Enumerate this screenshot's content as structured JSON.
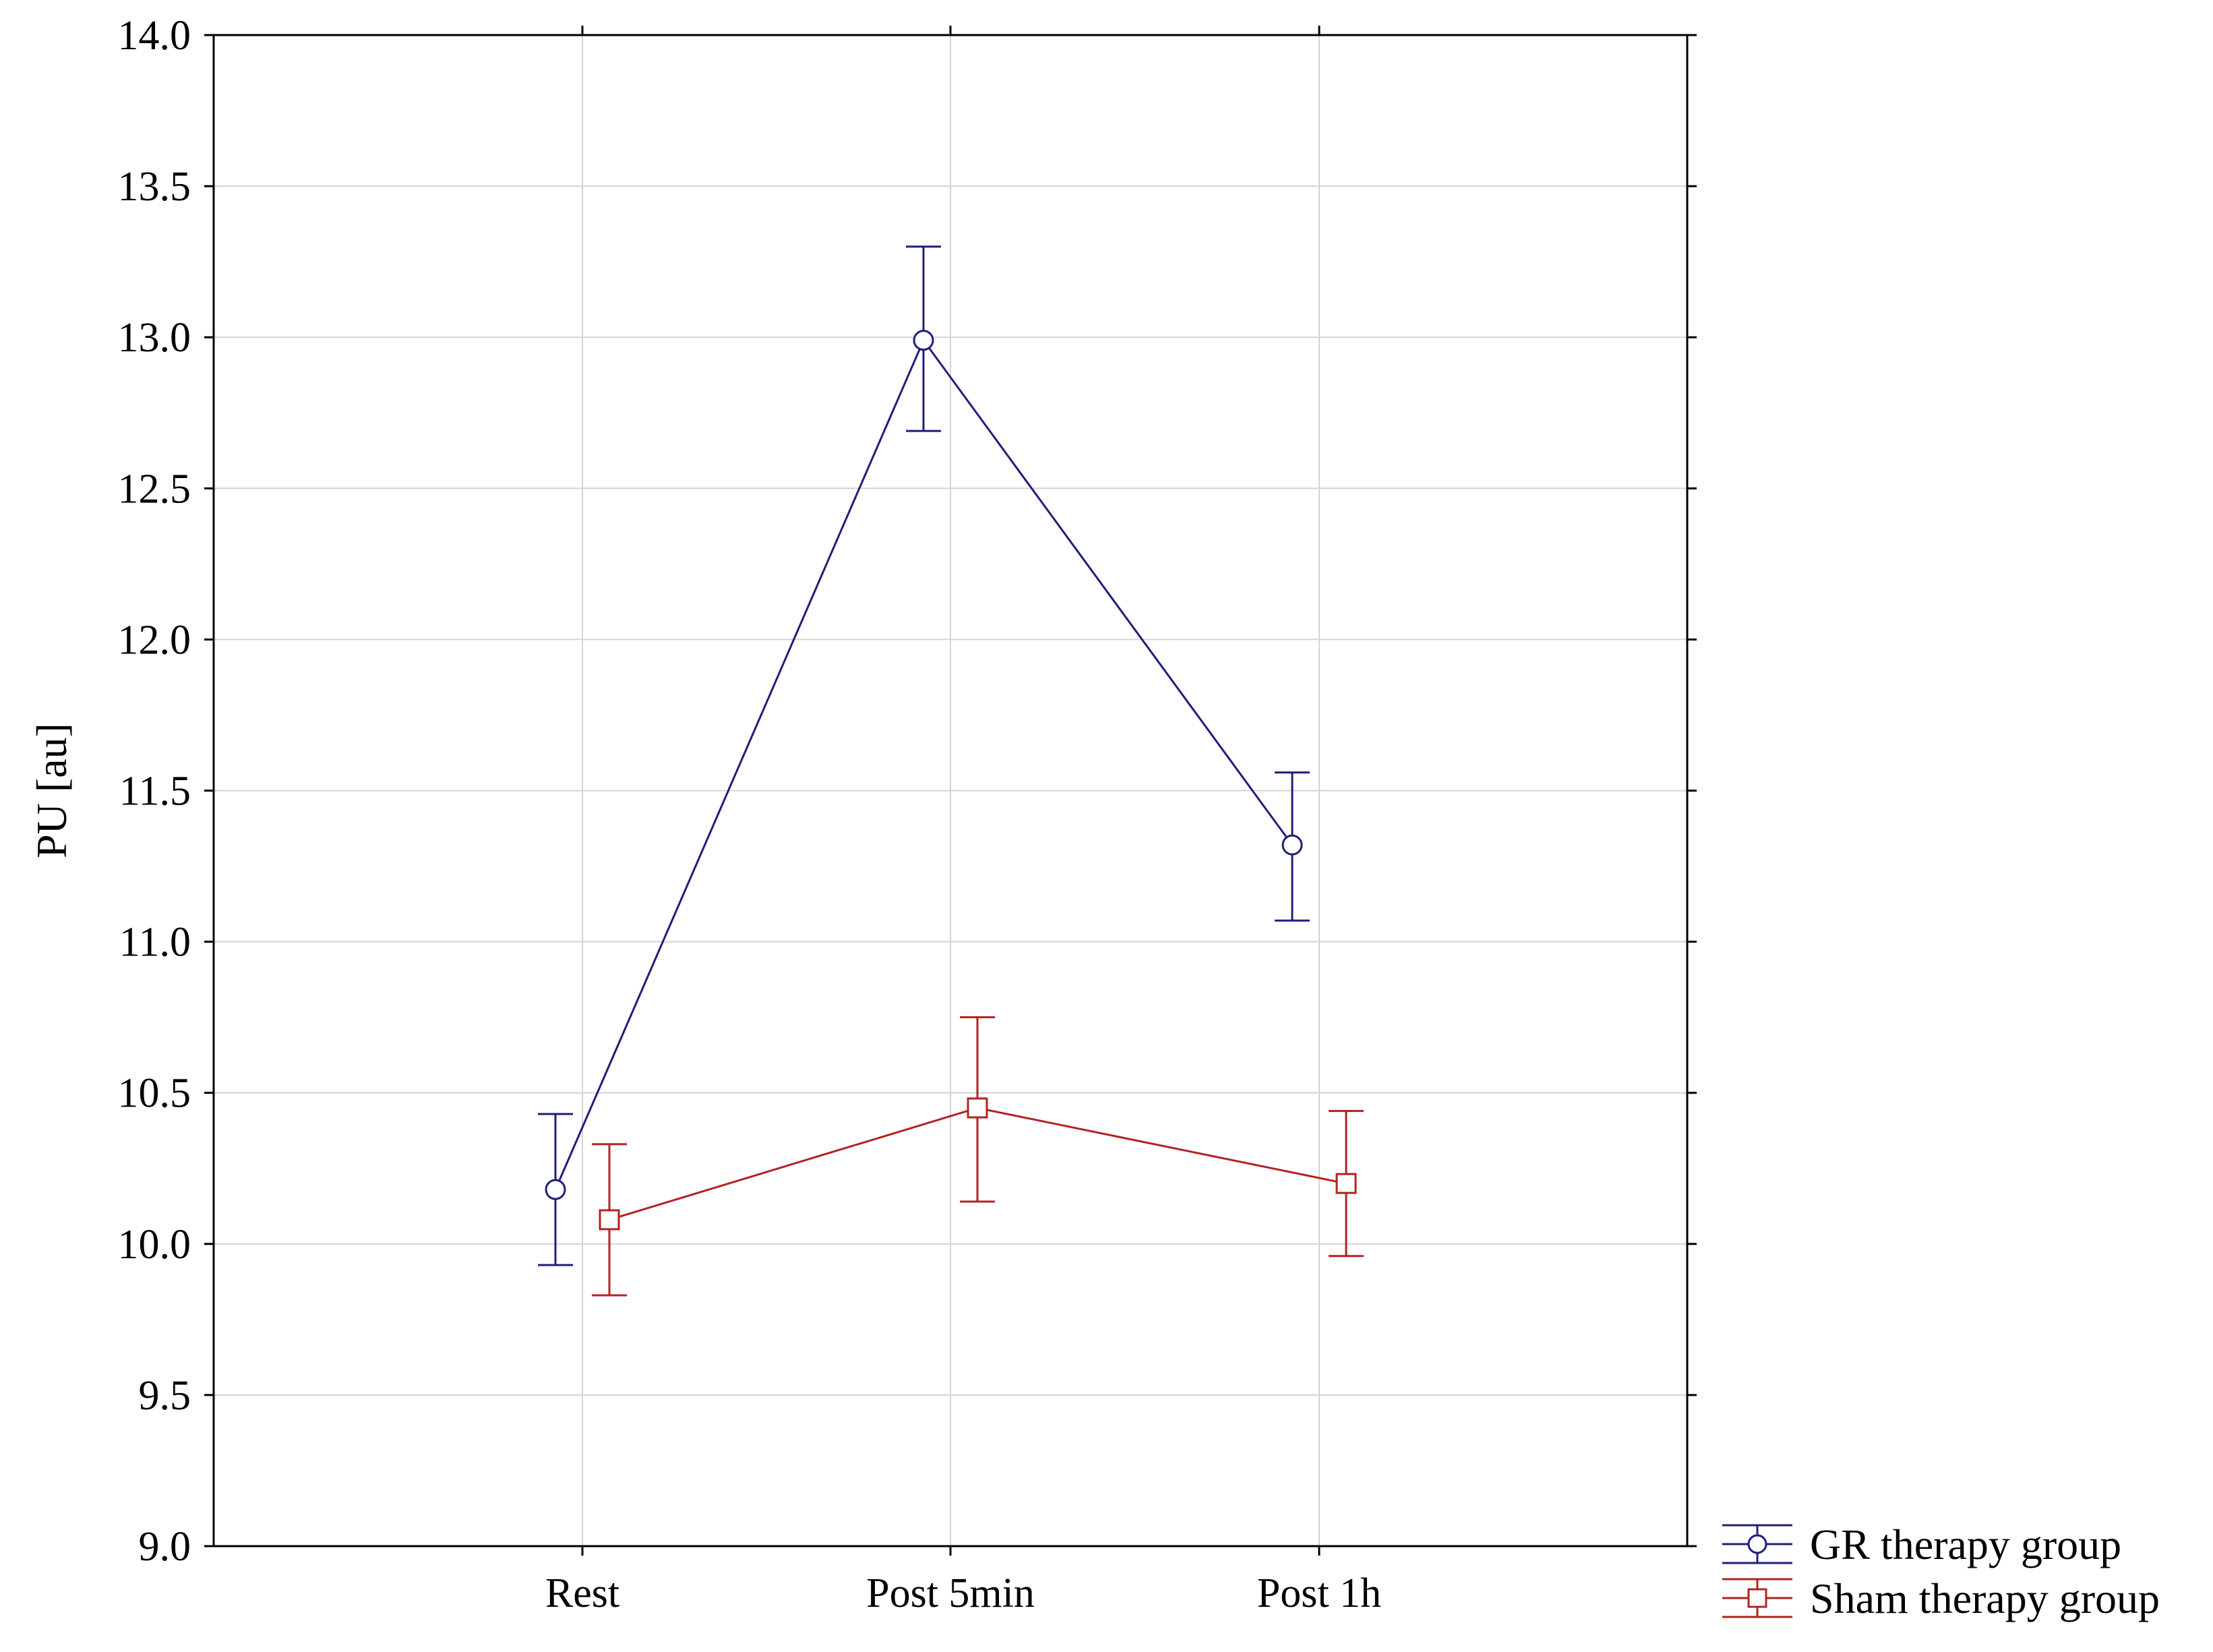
{
  "chart_data": {
    "type": "line",
    "title": "",
    "xlabel": "",
    "ylabel": "PU [au]",
    "ylim": [
      9.0,
      14.0
    ],
    "yticks": [
      "9.0",
      "9.5",
      "10.0",
      "10.5",
      "11.0",
      "11.5",
      "12.0",
      "12.5",
      "13.0",
      "13.5",
      "14.0"
    ],
    "categories": [
      "Rest",
      "Post 5min",
      "Post 1h"
    ],
    "grid": true,
    "legend_position": "bottom-right-outside",
    "series": [
      {
        "name": "GR therapy group",
        "color": "#1f1f7a",
        "marker": "circle",
        "values": [
          10.18,
          12.99,
          11.32
        ],
        "error_low": [
          9.93,
          12.69,
          11.07
        ],
        "error_high": [
          10.43,
          13.3,
          11.56
        ]
      },
      {
        "name": "Sham therapy group",
        "color": "#b22222",
        "marker": "square",
        "values": [
          10.08,
          10.45,
          10.2
        ],
        "error_low": [
          9.83,
          10.14,
          9.96
        ],
        "error_high": [
          10.33,
          10.75,
          10.44
        ]
      }
    ]
  }
}
